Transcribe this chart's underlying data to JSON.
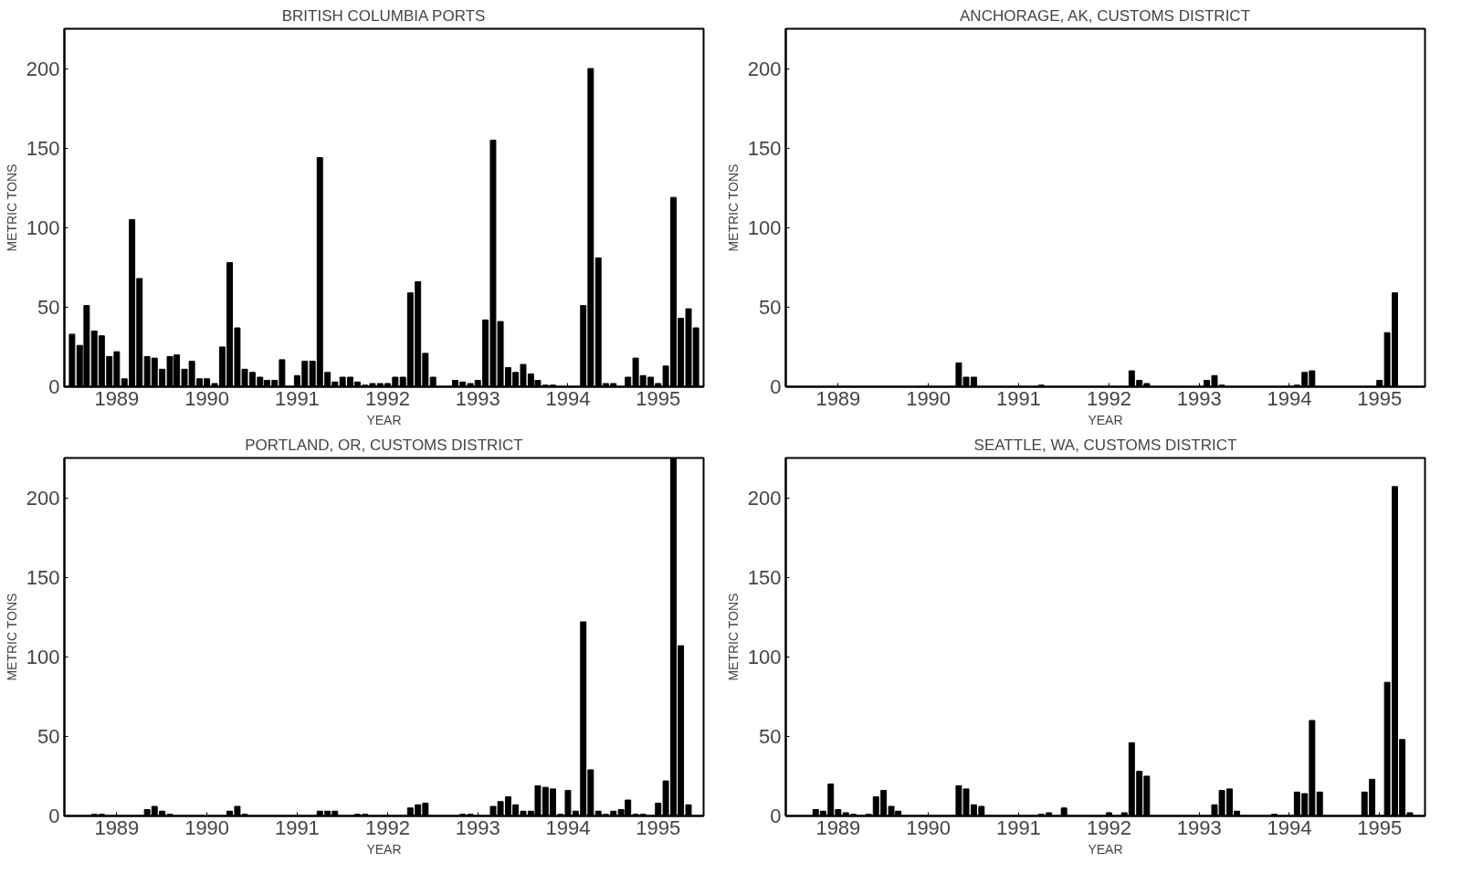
{
  "chart_data": [
    {
      "type": "bar",
      "title": "BRITISH COLUMBIA PORTS",
      "xlabel": "YEAR",
      "ylabel": "METRIC TONS",
      "color": "#000000",
      "x": [
        "1989-01",
        "1989-02",
        "1989-03",
        "1989-04",
        "1989-05",
        "1989-06",
        "1989-07",
        "1989-08",
        "1989-09",
        "1989-10",
        "1989-11",
        "1989-12",
        "1990-01",
        "1990-02",
        "1990-03",
        "1990-04",
        "1990-05",
        "1990-06",
        "1990-07",
        "1990-08",
        "1990-09",
        "1990-10",
        "1990-11",
        "1990-12",
        "1991-01",
        "1991-02",
        "1991-03",
        "1991-04",
        "1991-05",
        "1991-06",
        "1991-07",
        "1991-08",
        "1991-09",
        "1991-10",
        "1991-11",
        "1991-12",
        "1992-01",
        "1992-02",
        "1992-03",
        "1992-04",
        "1992-05",
        "1992-06",
        "1992-07",
        "1992-08",
        "1992-09",
        "1992-10",
        "1992-11",
        "1992-12",
        "1993-01",
        "1993-02",
        "1993-03",
        "1993-04",
        "1993-05",
        "1993-06",
        "1993-07",
        "1993-08",
        "1993-09",
        "1993-10",
        "1993-11",
        "1993-12",
        "1994-01",
        "1994-02",
        "1994-03",
        "1994-04",
        "1994-05",
        "1994-06",
        "1994-07",
        "1994-08",
        "1994-09",
        "1994-10",
        "1994-11",
        "1994-12",
        "1995-01",
        "1995-02",
        "1995-03",
        "1995-04",
        "1995-05",
        "1995-06",
        "1995-07",
        "1995-08",
        "1995-09",
        "1995-10",
        "1995-11",
        "1995-12"
      ],
      "values": [
        33,
        26,
        51,
        35,
        32,
        19,
        22,
        5,
        105,
        68,
        19,
        18,
        11,
        19,
        20,
        11,
        16,
        5,
        5,
        2,
        25,
        78,
        37,
        11,
        9,
        6,
        4,
        4,
        17,
        0,
        7,
        16,
        16,
        144,
        9,
        3,
        6,
        6,
        3,
        1,
        2,
        2,
        2,
        6,
        6,
        59,
        66,
        21,
        6,
        0,
        0,
        4,
        3,
        2,
        4,
        42,
        155,
        41,
        12,
        9,
        14,
        8,
        4,
        1,
        1,
        0,
        0,
        0,
        51,
        200,
        81,
        2,
        2,
        0,
        6,
        18,
        7,
        6,
        2,
        13,
        119,
        43,
        49,
        37
      ],
      "xlim": [
        "1988-12",
        "1996-01"
      ],
      "ylim": [
        0,
        225
      ],
      "yticks": [
        0,
        50,
        100,
        150,
        200
      ],
      "xticks": [
        {
          "value": "1989-07",
          "label": "1989"
        },
        {
          "value": "1990-07",
          "label": "1990"
        },
        {
          "value": "1991-07",
          "label": "1991"
        },
        {
          "value": "1992-07",
          "label": "1992"
        },
        {
          "value": "1993-07",
          "label": "1993"
        },
        {
          "value": "1994-07",
          "label": "1994"
        },
        {
          "value": "1995-07",
          "label": "1995"
        }
      ]
    },
    {
      "type": "bar",
      "title": "ANCHORAGE, AK, CUSTOMS DISTRICT",
      "xlabel": "YEAR",
      "ylabel": "METRIC TONS",
      "color": "#000000",
      "x": [
        "1989-01",
        "1989-02",
        "1989-03",
        "1989-04",
        "1989-05",
        "1989-06",
        "1989-07",
        "1989-08",
        "1989-09",
        "1989-10",
        "1989-11",
        "1989-12",
        "1990-01",
        "1990-02",
        "1990-03",
        "1990-04",
        "1990-05",
        "1990-06",
        "1990-07",
        "1990-08",
        "1990-09",
        "1990-10",
        "1990-11",
        "1990-12",
        "1991-01",
        "1991-02",
        "1991-03",
        "1991-04",
        "1991-05",
        "1991-06",
        "1991-07",
        "1991-08",
        "1991-09",
        "1991-10",
        "1991-11",
        "1991-12",
        "1992-01",
        "1992-02",
        "1992-03",
        "1992-04",
        "1992-05",
        "1992-06",
        "1992-07",
        "1992-08",
        "1992-09",
        "1992-10",
        "1992-11",
        "1992-12",
        "1993-01",
        "1993-02",
        "1993-03",
        "1993-04",
        "1993-05",
        "1993-06",
        "1993-07",
        "1993-08",
        "1993-09",
        "1993-10",
        "1993-11",
        "1993-12",
        "1994-01",
        "1994-02",
        "1994-03",
        "1994-04",
        "1994-05",
        "1994-06",
        "1994-07",
        "1994-08",
        "1994-09",
        "1994-10",
        "1994-11",
        "1994-12",
        "1995-01",
        "1995-02",
        "1995-03",
        "1995-04",
        "1995-05",
        "1995-06",
        "1995-07",
        "1995-08",
        "1995-09",
        "1995-10",
        "1995-11",
        "1995-12"
      ],
      "values": [
        0,
        0,
        0,
        0,
        0,
        0,
        0,
        0,
        0,
        0,
        0,
        0,
        0,
        0,
        0,
        0,
        0,
        0,
        0,
        0,
        0,
        0,
        15,
        6,
        6,
        0,
        0,
        0,
        0,
        0,
        0,
        0,
        0,
        1,
        0,
        0,
        0,
        0,
        0,
        0,
        0,
        0,
        0,
        0,
        0,
        10,
        4,
        2,
        0,
        0,
        0,
        0,
        0,
        0,
        0,
        4,
        7,
        1,
        0,
        0,
        0,
        0,
        0,
        0,
        0,
        0,
        0,
        1,
        9,
        10,
        0,
        0,
        0,
        0,
        0,
        0,
        0,
        0,
        4,
        34,
        59,
        0,
        0,
        0
      ],
      "xlim": [
        "1988-12",
        "1996-01"
      ],
      "ylim": [
        0,
        225
      ],
      "yticks": [
        0,
        50,
        100,
        150,
        200
      ],
      "xticks": [
        {
          "value": "1989-07",
          "label": "1989"
        },
        {
          "value": "1990-07",
          "label": "1990"
        },
        {
          "value": "1991-07",
          "label": "1991"
        },
        {
          "value": "1992-07",
          "label": "1992"
        },
        {
          "value": "1993-07",
          "label": "1993"
        },
        {
          "value": "1994-07",
          "label": "1994"
        },
        {
          "value": "1995-07",
          "label": "1995"
        }
      ]
    },
    {
      "type": "bar",
      "title": "PORTLAND, OR, CUSTOMS DISTRICT",
      "xlabel": "YEAR",
      "ylabel": "METRIC TONS",
      "color": "#000000",
      "x": [
        "1989-01",
        "1989-02",
        "1989-03",
        "1989-04",
        "1989-05",
        "1989-06",
        "1989-07",
        "1989-08",
        "1989-09",
        "1989-10",
        "1989-11",
        "1989-12",
        "1990-01",
        "1990-02",
        "1990-03",
        "1990-04",
        "1990-05",
        "1990-06",
        "1990-07",
        "1990-08",
        "1990-09",
        "1990-10",
        "1990-11",
        "1990-12",
        "1991-01",
        "1991-02",
        "1991-03",
        "1991-04",
        "1991-05",
        "1991-06",
        "1991-07",
        "1991-08",
        "1991-09",
        "1991-10",
        "1991-11",
        "1991-12",
        "1992-01",
        "1992-02",
        "1992-03",
        "1992-04",
        "1992-05",
        "1992-06",
        "1992-07",
        "1992-08",
        "1992-09",
        "1992-10",
        "1992-11",
        "1992-12",
        "1993-01",
        "1993-02",
        "1993-03",
        "1993-04",
        "1993-05",
        "1993-06",
        "1993-07",
        "1993-08",
        "1993-09",
        "1993-10",
        "1993-11",
        "1993-12",
        "1994-01",
        "1994-02",
        "1994-03",
        "1994-04",
        "1994-05",
        "1994-06",
        "1994-07",
        "1994-08",
        "1994-09",
        "1994-10",
        "1994-11",
        "1994-12",
        "1995-01",
        "1995-02",
        "1995-03",
        "1995-04",
        "1995-05",
        "1995-06",
        "1995-07",
        "1995-08",
        "1995-09",
        "1995-10",
        "1995-11",
        "1995-12"
      ],
      "values": [
        0,
        0,
        0,
        1,
        1,
        0,
        0,
        0,
        0,
        0,
        4,
        6,
        3,
        1,
        0,
        0,
        0,
        0,
        0,
        0,
        0,
        3,
        6,
        1,
        0,
        0,
        0,
        0,
        0,
        0,
        0,
        0,
        0,
        3,
        3,
        3,
        0,
        0,
        1,
        1,
        0,
        0,
        0,
        0,
        0,
        5,
        7,
        8,
        0,
        0,
        0,
        0,
        1,
        1,
        0,
        0,
        6,
        9,
        12,
        7,
        3,
        3,
        19,
        18,
        17,
        1,
        16,
        3,
        122,
        29,
        3,
        1,
        3,
        4,
        10,
        1,
        1,
        0,
        8,
        22,
        225,
        107,
        7,
        0
      ],
      "xlim": [
        "1988-12",
        "1996-01"
      ],
      "ylim": [
        0,
        225
      ],
      "yticks": [
        0,
        50,
        100,
        150,
        200
      ],
      "xticks": [
        {
          "value": "1989-07",
          "label": "1989"
        },
        {
          "value": "1990-07",
          "label": "1990"
        },
        {
          "value": "1991-07",
          "label": "1991"
        },
        {
          "value": "1992-07",
          "label": "1992"
        },
        {
          "value": "1993-07",
          "label": "1993"
        },
        {
          "value": "1994-07",
          "label": "1994"
        },
        {
          "value": "1995-07",
          "label": "1995"
        }
      ]
    },
    {
      "type": "bar",
      "title": "SEATTLE, WA, CUSTOMS DISTRICT",
      "xlabel": "YEAR",
      "ylabel": "METRIC TONS",
      "color": "#000000",
      "x": [
        "1989-01",
        "1989-02",
        "1989-03",
        "1989-04",
        "1989-05",
        "1989-06",
        "1989-07",
        "1989-08",
        "1989-09",
        "1989-10",
        "1989-11",
        "1989-12",
        "1990-01",
        "1990-02",
        "1990-03",
        "1990-04",
        "1990-05",
        "1990-06",
        "1990-07",
        "1990-08",
        "1990-09",
        "1990-10",
        "1990-11",
        "1990-12",
        "1991-01",
        "1991-02",
        "1991-03",
        "1991-04",
        "1991-05",
        "1991-06",
        "1991-07",
        "1991-08",
        "1991-09",
        "1991-10",
        "1991-11",
        "1991-12",
        "1992-01",
        "1992-02",
        "1992-03",
        "1992-04",
        "1992-05",
        "1992-06",
        "1992-07",
        "1992-08",
        "1992-09",
        "1992-10",
        "1992-11",
        "1992-12",
        "1993-01",
        "1993-02",
        "1993-03",
        "1993-04",
        "1993-05",
        "1993-06",
        "1993-07",
        "1993-08",
        "1993-09",
        "1993-10",
        "1993-11",
        "1993-12",
        "1994-01",
        "1994-02",
        "1994-03",
        "1994-04",
        "1994-05",
        "1994-06",
        "1994-07",
        "1994-08",
        "1994-09",
        "1994-10",
        "1994-11",
        "1994-12",
        "1995-01",
        "1995-02",
        "1995-03",
        "1995-04",
        "1995-05",
        "1995-06",
        "1995-07",
        "1995-08",
        "1995-09",
        "1995-10",
        "1995-11",
        "1995-12"
      ],
      "values": [
        0,
        0,
        0,
        4,
        3,
        20,
        4,
        2,
        1,
        0,
        1,
        12,
        16,
        6,
        3,
        0,
        0,
        0,
        0,
        0,
        0,
        0,
        19,
        17,
        7,
        6,
        0,
        0,
        0,
        0,
        0,
        0,
        0,
        1,
        2,
        0,
        5,
        0,
        0,
        0,
        0,
        0,
        2,
        0,
        2,
        46,
        28,
        25,
        0,
        0,
        0,
        0,
        0,
        0,
        0,
        0,
        7,
        16,
        17,
        3,
        0,
        0,
        0,
        0,
        1,
        0,
        0,
        15,
        14,
        60,
        15,
        0,
        0,
        0,
        0,
        0,
        15,
        23,
        0,
        84,
        207,
        48,
        2,
        0
      ],
      "xlim": [
        "1988-12",
        "1996-01"
      ],
      "ylim": [
        0,
        225
      ],
      "yticks": [
        0,
        50,
        100,
        150,
        200
      ],
      "xticks": [
        {
          "value": "1989-07",
          "label": "1989"
        },
        {
          "value": "1990-07",
          "label": "1990"
        },
        {
          "value": "1991-07",
          "label": "1991"
        },
        {
          "value": "1992-07",
          "label": "1992"
        },
        {
          "value": "1993-07",
          "label": "1993"
        },
        {
          "value": "1994-07",
          "label": "1994"
        },
        {
          "value": "1995-07",
          "label": "1995"
        }
      ]
    }
  ]
}
